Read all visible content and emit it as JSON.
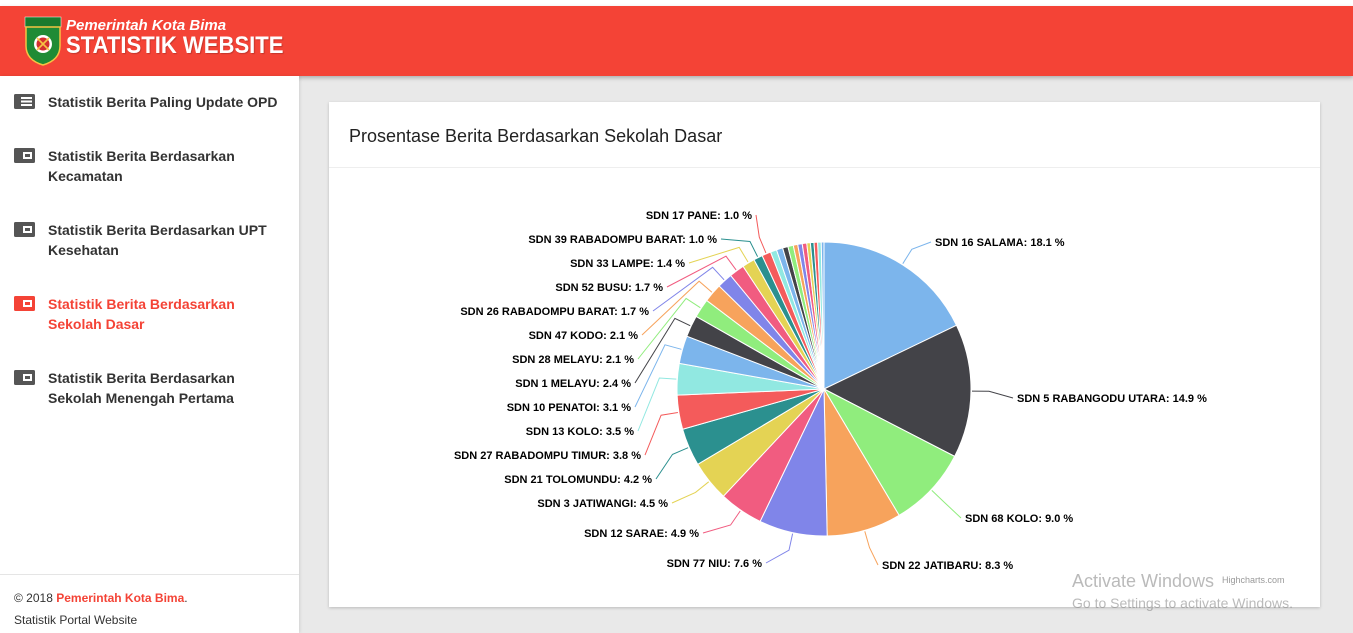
{
  "header": {
    "subtitle": "Pemerintah Kota Bima",
    "title": "STATISTIK WEBSITE",
    "color": "#f44336"
  },
  "sidebar": {
    "items": [
      {
        "label": "Statistik Berita Paling Update OPD",
        "icon": "newspaper-icon",
        "active": false
      },
      {
        "label": "Statistik Berita Berdasarkan Kecamatan",
        "icon": "wallet-icon",
        "active": false
      },
      {
        "label": "Statistik Berita Berdasarkan UPT Kesehatan",
        "icon": "wallet-icon",
        "active": false
      },
      {
        "label": "Statistik Berita Berdasarkan Sekolah Dasar",
        "icon": "wallet-icon",
        "active": true
      },
      {
        "label": "Statistik Berita Berdasarkan Sekolah Menengah Pertama",
        "icon": "wallet-icon",
        "active": false
      }
    ]
  },
  "footer": {
    "copyright": "© 2018 ",
    "org": "Pemerintah Kota Bima",
    "period": ".",
    "line2": "Statistik Portal Website"
  },
  "card": {
    "title": "Prosentase Berita Berdasarkan Sekolah Dasar",
    "credits": "Highcharts.com"
  },
  "watermark": {
    "line1": "Activate Windows",
    "line2": "Go to Settings to activate Windows."
  },
  "chart_data": {
    "type": "pie",
    "categories": [
      "SDN 16 SALAMA",
      "SDN 5 RABANGODU UTARA",
      "SDN 68 KOLO",
      "SDN 22 JATIBARU",
      "SDN 77 NIU",
      "SDN 12 SARAE",
      "SDN 3 JATIWANGI",
      "SDN 21 TOLOMUNDU",
      "SDN 27 RABADOMPU TIMUR",
      "SDN 13 KOLO",
      "SDN 10 PENATOI",
      "SDN 1 MELAYU",
      "SDN 28 MELAYU",
      "SDN 47 KODO",
      "SDN 26 RABADOMPU BARAT",
      "SDN 52 BUSU",
      "SDN 33 LAMPE",
      "SDN 39 RABADOMPU BARAT",
      "SDN 17 PANE"
    ],
    "values": [
      18.1,
      14.9,
      9.0,
      8.3,
      7.6,
      4.9,
      4.5,
      4.2,
      3.8,
      3.5,
      3.1,
      2.4,
      2.1,
      2.1,
      1.7,
      1.7,
      1.4,
      1.0,
      1.0
    ],
    "unlabeled_remainder": [
      0.7,
      0.7,
      0.6,
      0.6,
      0.5,
      0.5,
      0.5,
      0.4,
      0.4,
      0.4,
      0.4,
      0.3
    ],
    "label_format": "{name}: {value} %",
    "colors": [
      "#7cb5ec",
      "#434348",
      "#90ed7d",
      "#f7a35c",
      "#8085e9",
      "#f15c80",
      "#e4d354",
      "#2b908f",
      "#f45b5b",
      "#91e8e1"
    ]
  }
}
